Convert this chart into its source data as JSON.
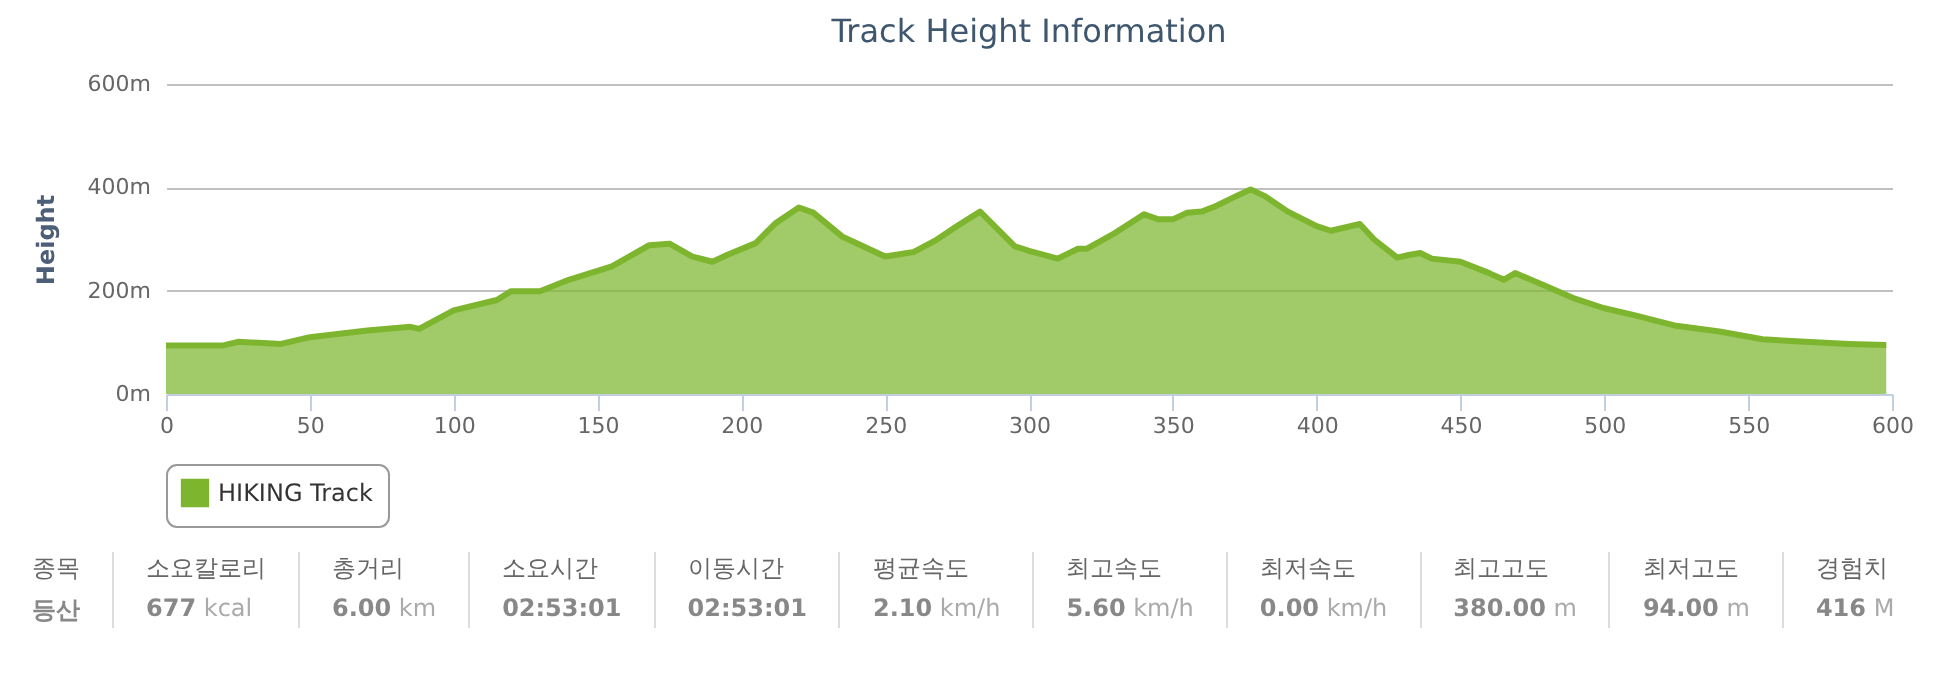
{
  "chart_data": [
    {
      "type": "area",
      "title": "Track Height Information",
      "ylabel": "Height",
      "legend": "bottom",
      "grid": "y",
      "xlim": [
        0,
        600
      ],
      "xticks": [
        0,
        50,
        100,
        150,
        200,
        250,
        300,
        350,
        400,
        450,
        500,
        550,
        600
      ],
      "ylim": [
        0,
        600
      ],
      "yticks": [
        {
          "value": 0,
          "label": "0m"
        },
        {
          "value": 200,
          "label": "200m"
        },
        {
          "value": 400,
          "label": "400m"
        },
        {
          "value": 600,
          "label": "600m"
        }
      ],
      "x": [
        0,
        20,
        25,
        40,
        50,
        70,
        85,
        88,
        100,
        115,
        120,
        130,
        140,
        155,
        168,
        175,
        183,
        190,
        195,
        205,
        212,
        220,
        225,
        235,
        250,
        260,
        268,
        275,
        283,
        295,
        300,
        310,
        317,
        320,
        330,
        340,
        345,
        350,
        355,
        360,
        365,
        372,
        377,
        382,
        390,
        400,
        405,
        415,
        420,
        428,
        432,
        436,
        440,
        450,
        460,
        465,
        469,
        480,
        490,
        500,
        510,
        525,
        540,
        555,
        570,
        585,
        598
      ],
      "series": [
        {
          "name": "HIKING Track",
          "color": "#7db52e",
          "values": [
            94,
            94,
            101,
            97,
            110,
            123,
            130,
            126,
            162,
            182,
            199,
            199,
            221,
            247,
            288,
            291,
            266,
            256,
            269,
            292,
            331,
            361,
            351,
            305,
            266,
            275,
            299,
            325,
            353,
            286,
            277,
            262,
            281,
            281,
            312,
            348,
            338,
            338,
            351,
            353,
            364,
            383,
            396,
            383,
            353,
            325,
            316,
            329,
            299,
            264,
            269,
            273,
            262,
            256,
            234,
            221,
            234,
            208,
            184,
            166,
            153,
            132,
            121,
            106,
            101,
            97,
            95
          ]
        }
      ]
    },
    {
      "type": "other",
      "annotations": [
        "종목",
        "등산",
        "소요칼로리",
        "677 kcal",
        "총거리",
        "6.00 km",
        "소요시간",
        "02:53:01",
        "이동시간",
        "02:53:01",
        "평균속도",
        "2.10 km/h",
        "최고속도",
        "5.60 km/h",
        "최저속도",
        "0.00 km/h",
        "최고고도",
        "380.00 m",
        "최저고도",
        "94.00 m",
        "경험치",
        "416 M"
      ]
    }
  ]
}
